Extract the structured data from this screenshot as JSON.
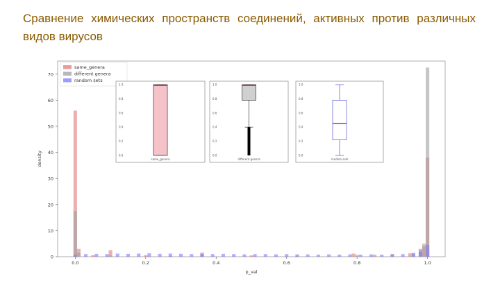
{
  "slide": {
    "title": "Сравнение химических пространств соединений, активных против различных видов вирусов"
  },
  "chart_data": {
    "type": "bar",
    "xlabel": "p_val",
    "ylabel": "density",
    "xlim": [
      -0.05,
      1.05
    ],
    "ylim": [
      0,
      75
    ],
    "xticks": [
      "0.0",
      "0.2",
      "0.4",
      "0.6",
      "0.8",
      "1.0"
    ],
    "yticks": [
      "0",
      "10",
      "20",
      "30",
      "40",
      "50",
      "60",
      "70"
    ],
    "legend_position": "top-left",
    "series": [
      {
        "name": "same_genera",
        "color": "#e07b7b",
        "points": [
          [
            0.0,
            56
          ],
          [
            0.01,
            3
          ],
          [
            0.05,
            0.6
          ],
          [
            0.1,
            2.5
          ],
          [
            0.2,
            0.6
          ],
          [
            0.27,
            0.3
          ],
          [
            0.36,
            1.6
          ],
          [
            0.5,
            0.5
          ],
          [
            0.63,
            0.4
          ],
          [
            0.79,
            1.2
          ],
          [
            0.85,
            0.8
          ],
          [
            0.9,
            1.0
          ],
          [
            0.95,
            1.3
          ],
          [
            0.98,
            2.6
          ],
          [
            0.99,
            4
          ],
          [
            1.0,
            38
          ]
        ]
      },
      {
        "name": "different genera",
        "color": "#a0a0a0",
        "points": [
          [
            0.0,
            17.5
          ],
          [
            0.01,
            1.5
          ],
          [
            0.1,
            0.5
          ],
          [
            0.36,
            0.6
          ],
          [
            0.8,
            0.7
          ],
          [
            0.96,
            1.5
          ],
          [
            0.98,
            3
          ],
          [
            0.99,
            5
          ],
          [
            1.0,
            72.5
          ]
        ]
      },
      {
        "name": "random sets",
        "color": "#7b7bff",
        "points": [
          [
            0.0,
            0.8
          ],
          [
            0.03,
            1.0
          ],
          [
            0.06,
            1.1
          ],
          [
            0.09,
            1.0
          ],
          [
            0.12,
            1.2
          ],
          [
            0.15,
            1.1
          ],
          [
            0.18,
            1.2
          ],
          [
            0.21,
            1.3
          ],
          [
            0.24,
            1.1
          ],
          [
            0.27,
            1.2
          ],
          [
            0.3,
            1.1
          ],
          [
            0.33,
            1.0
          ],
          [
            0.36,
            1.1
          ],
          [
            0.39,
            1.0
          ],
          [
            0.42,
            1.1
          ],
          [
            0.45,
            1.0
          ],
          [
            0.48,
            0.9
          ],
          [
            0.51,
            1.0
          ],
          [
            0.54,
            1.0
          ],
          [
            0.57,
            0.9
          ],
          [
            0.6,
            1.0
          ],
          [
            0.63,
            0.9
          ],
          [
            0.66,
            0.9
          ],
          [
            0.69,
            0.8
          ],
          [
            0.72,
            0.9
          ],
          [
            0.75,
            0.8
          ],
          [
            0.78,
            0.9
          ],
          [
            0.81,
            0.8
          ],
          [
            0.84,
            0.9
          ],
          [
            0.87,
            0.8
          ],
          [
            0.9,
            0.9
          ],
          [
            0.93,
            1.0
          ],
          [
            0.96,
            1.2
          ],
          [
            0.98,
            1.8
          ],
          [
            1.0,
            4.5
          ]
        ]
      }
    ],
    "insets": [
      {
        "label": "same_genera",
        "ylim": [
          0,
          1.0
        ],
        "yticks": [
          "0.0",
          "0.2",
          "0.4",
          "0.6",
          "0.8",
          "1.0"
        ],
        "box": {
          "q1": 0.0,
          "median": 0.99,
          "q3": 1.0,
          "whisker_low": 0.0,
          "whisker_high": 1.0
        },
        "fill": "#f4c2c8",
        "edge": "#444444",
        "median_color": "#a03030"
      },
      {
        "label": "different genera",
        "ylim": [
          0,
          1.0
        ],
        "yticks": [
          "0.0",
          "0.2",
          "0.4",
          "0.6",
          "0.8",
          "1.0"
        ],
        "box": {
          "q1": 0.78,
          "median": 0.99,
          "q3": 1.0,
          "whisker_low": 0.4,
          "whisker_high": 1.0,
          "outlier_low": 0.0,
          "outlier_high": 0.4
        },
        "fill": "#d0d0d0",
        "edge": "#444444",
        "median_color": "#a03030"
      },
      {
        "label": "random sets",
        "ylim": [
          0,
          1.0
        ],
        "yticks": [
          "0.0",
          "0.2",
          "0.4",
          "0.6",
          "0.8",
          "1.0"
        ],
        "box": {
          "q1": 0.22,
          "median": 0.45,
          "q3": 0.78,
          "whisker_low": 0.0,
          "whisker_high": 1.0
        },
        "fill": "#ffffff",
        "edge": "#6b6bd6",
        "median_color": "#a03030"
      }
    ]
  }
}
